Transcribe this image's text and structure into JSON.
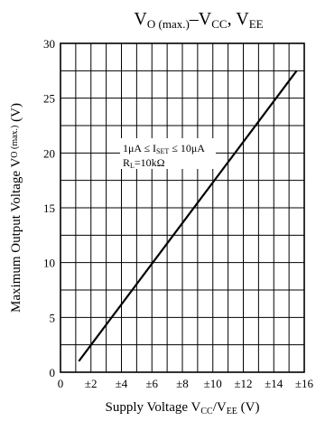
{
  "chart_data": {
    "type": "line",
    "title": {
      "p1": "V",
      "p1sub": "O (max.)",
      "p2": "–V",
      "p2sub": "CC",
      "p3": ", V",
      "p3sub": "EE"
    },
    "xlabel": {
      "main": "Supply Voltage  V",
      "sub1": "CC",
      "mid": "/V",
      "sub2": "EE",
      "end": " (V)"
    },
    "ylabel": {
      "main": "Maximum Output Voltage  V",
      "sub": "O (max.)",
      "end": " (V)"
    },
    "xlim": [
      0,
      16
    ],
    "ylim": [
      0,
      30
    ],
    "x_ticks": [
      {
        "value": 0,
        "label": "0"
      },
      {
        "value": 2,
        "label": "±2"
      },
      {
        "value": 4,
        "label": "±4"
      },
      {
        "value": 6,
        "label": "±6"
      },
      {
        "value": 8,
        "label": "±8"
      },
      {
        "value": 10,
        "label": "±10"
      },
      {
        "value": 12,
        "label": "±12"
      },
      {
        "value": 14,
        "label": "±14"
      },
      {
        "value": 16,
        "label": "±16"
      }
    ],
    "y_ticks": [
      {
        "value": 0,
        "label": "0"
      },
      {
        "value": 5,
        "label": "5"
      },
      {
        "value": 10,
        "label": "10"
      },
      {
        "value": 15,
        "label": "15"
      },
      {
        "value": 20,
        "label": "20"
      },
      {
        "value": 25,
        "label": "25"
      },
      {
        "value": 30,
        "label": "30"
      }
    ],
    "x_grid": [
      1,
      2,
      3,
      4,
      5,
      6,
      7,
      8,
      9,
      10,
      11,
      12,
      13,
      14,
      15
    ],
    "y_grid": [
      2.5,
      5,
      7.5,
      10,
      12.5,
      15,
      17.5,
      20,
      22.5,
      25,
      27.5
    ],
    "grid": true,
    "series": [
      {
        "x": [
          1.2,
          15.5
        ],
        "y": [
          1.0,
          27.5
        ]
      }
    ],
    "annotation": {
      "line1": {
        "a": "1μA ≤ I",
        "sub": "SET",
        "b": " ≤ 10μA"
      },
      "line2": {
        "a": "R",
        "sub": "L",
        "b": "=10kΩ"
      }
    }
  }
}
